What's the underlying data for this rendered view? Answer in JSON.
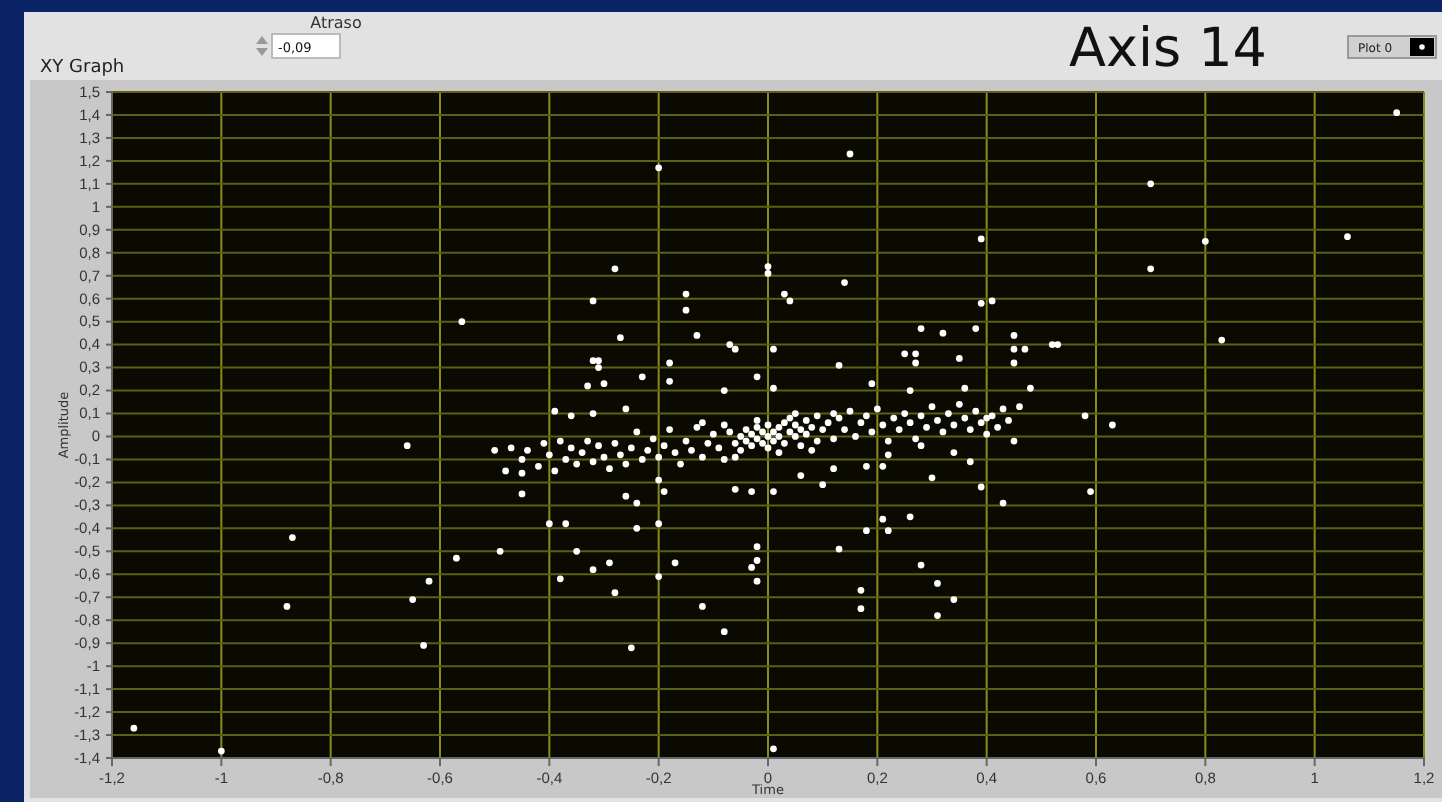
{
  "chart_data": {
    "type": "scatter",
    "title": "XY Graph",
    "xlabel": "Time",
    "ylabel": "Amplitude",
    "annotations": [
      "Atraso",
      "-0,09",
      "Axis 14"
    ],
    "xlim": [
      -1.2,
      1.2
    ],
    "xticks": [
      {
        "value": -1.2,
        "label": "-1,2"
      },
      -1,
      {
        "value": -0.8,
        "label": "-0,8"
      },
      {
        "value": -0.6,
        "label": "-0,6"
      },
      {
        "value": -0.4,
        "label": "-0,4"
      },
      {
        "value": -0.2,
        "label": "-0,2"
      },
      0,
      {
        "value": 0.2,
        "label": "0,2"
      },
      {
        "value": 0.4,
        "label": "0,4"
      },
      {
        "value": 0.6,
        "label": "0,6"
      },
      {
        "value": 0.8,
        "label": "0,8"
      },
      1,
      {
        "value": 1.2,
        "label": "1,2"
      }
    ],
    "ylim": [
      -1.4,
      1.5
    ],
    "yticks": [
      {
        "value": -1.4,
        "label": "-1,4"
      },
      {
        "value": -1.3,
        "label": "-1,3"
      },
      {
        "value": -1.2,
        "label": "-1,2"
      },
      {
        "value": -1.1,
        "label": "-1,1"
      },
      -1,
      {
        "value": -0.9,
        "label": "-0,9"
      },
      {
        "value": -0.8,
        "label": "-0,8"
      },
      {
        "value": -0.7,
        "label": "-0,7"
      },
      {
        "value": -0.6,
        "label": "-0,6"
      },
      {
        "value": -0.5,
        "label": "-0,5"
      },
      {
        "value": -0.4,
        "label": "-0,4"
      },
      {
        "value": -0.3,
        "label": "-0,3"
      },
      {
        "value": -0.2,
        "label": "-0,2"
      },
      {
        "value": -0.1,
        "label": "-0,1"
      },
      0,
      {
        "value": 0.1,
        "label": "0,1"
      },
      {
        "value": 0.2,
        "label": "0,2"
      },
      {
        "value": 0.3,
        "label": "0,3"
      },
      {
        "value": 0.4,
        "label": "0,4"
      },
      {
        "value": 0.5,
        "label": "0,5"
      },
      {
        "value": 0.6,
        "label": "0,6"
      },
      {
        "value": 0.7,
        "label": "0,7"
      },
      {
        "value": 0.8,
        "label": "0,8"
      },
      {
        "value": 0.9,
        "label": "0,9"
      },
      1,
      {
        "value": 1.1,
        "label": "1,1"
      },
      {
        "value": 1.2,
        "label": "1,2"
      },
      {
        "value": 1.3,
        "label": "1,3"
      },
      {
        "value": 1.4,
        "label": "1,4"
      },
      {
        "value": 1.5,
        "label": "1,5"
      }
    ],
    "grid": true,
    "legend": "top right",
    "marker": "circle",
    "series": [
      {
        "name": "Plot 0",
        "color": "#ffffff",
        "x": [
          -0.2,
          -0.28,
          -0.32,
          -0.56,
          -0.27,
          -0.15,
          -0.15,
          -0.13,
          -0.32,
          -0.31,
          -0.31,
          -0.18,
          -0.18,
          -0.23,
          -0.33,
          -0.3,
          -0.26,
          -0.39,
          -0.36,
          -0.32,
          -0.66,
          -0.5,
          -1.16,
          -1.0,
          -0.87,
          -0.88,
          -0.57,
          -0.62,
          -0.65,
          -0.63,
          -0.49,
          -0.45,
          -0.4,
          -0.37,
          -0.35,
          -0.38,
          -0.32,
          -0.29,
          -0.28,
          -0.26,
          -0.24,
          -0.24,
          -0.2,
          -0.2,
          -0.17,
          -0.25,
          -0.12,
          -0.2,
          -0.19,
          -0.48,
          -0.45,
          -0.08,
          0.01,
          -0.02,
          -0.02,
          -0.03,
          -0.02,
          0.13,
          0.18,
          0.21,
          0.22,
          0.26,
          0.17,
          0.17,
          0.28,
          0.31,
          0.34,
          0.31,
          0.59,
          0.39,
          0.43,
          0.37,
          0.34,
          0.3,
          0.1,
          -0.06,
          -0.03,
          0.01,
          0.21,
          0.18,
          0.06,
          0.12,
          0.22,
          0.28,
          1.15,
          0.15,
          0.7,
          0.39,
          0.8,
          1.06,
          0.7,
          0.0,
          0.0,
          0.14,
          0.03,
          0.04,
          0.39,
          0.41,
          0.83,
          0.28,
          0.32,
          0.38,
          0.45,
          0.45,
          0.47,
          0.52,
          0.53,
          0.45,
          -0.07,
          -0.06,
          0.01,
          0.25,
          0.27,
          0.27,
          0.35,
          0.13,
          -0.02,
          0.19,
          0.48,
          0.46,
          0.58,
          0.63,
          -0.08,
          0.01,
          0.4,
          0.26,
          0.36,
          -0.47,
          -0.45,
          -0.44,
          -0.42,
          -0.41,
          -0.4,
          -0.39,
          -0.38,
          -0.37,
          -0.36,
          -0.35,
          -0.34,
          -0.33,
          -0.32,
          -0.31,
          -0.3,
          -0.29,
          -0.28,
          -0.27,
          -0.26,
          -0.25,
          -0.24,
          -0.23,
          -0.22,
          -0.21,
          -0.2,
          -0.19,
          -0.18,
          -0.17,
          -0.16,
          -0.15,
          -0.14,
          -0.13,
          -0.12,
          -0.11,
          -0.1,
          -0.09,
          -0.08,
          -0.07,
          -0.06,
          -0.05,
          -0.05,
          -0.04,
          -0.04,
          -0.03,
          -0.03,
          -0.02,
          -0.02,
          -0.01,
          -0.01,
          0.0,
          0.0,
          0.0,
          0.01,
          0.01,
          0.02,
          0.02,
          0.03,
          0.03,
          0.04,
          0.04,
          0.05,
          0.05,
          0.06,
          0.06,
          0.07,
          0.07,
          0.08,
          0.09,
          0.09,
          0.1,
          0.11,
          0.12,
          0.13,
          0.14,
          0.15,
          0.16,
          0.17,
          0.18,
          0.19,
          0.2,
          0.21,
          0.22,
          0.23,
          0.24,
          0.25,
          0.26,
          0.27,
          0.28,
          0.29,
          0.3,
          0.31,
          0.32,
          0.33,
          0.34,
          0.35,
          0.36,
          0.37,
          0.38,
          0.39,
          0.4,
          0.41,
          0.42,
          0.43,
          0.44,
          0.45,
          -0.02,
          0.02,
          0.08,
          -0.08,
          0.12,
          -0.12,
          0.05,
          -0.06
        ],
        "values": [
          1.17,
          0.73,
          0.59,
          0.5,
          0.43,
          0.62,
          0.55,
          0.44,
          0.33,
          0.33,
          0.3,
          0.32,
          0.24,
          0.26,
          0.22,
          0.23,
          0.12,
          0.11,
          0.09,
          0.1,
          -0.04,
          -0.06,
          -1.27,
          -1.37,
          -0.44,
          -0.74,
          -0.53,
          -0.63,
          -0.71,
          -0.91,
          -0.5,
          -0.25,
          -0.38,
          -0.38,
          -0.5,
          -0.62,
          -0.58,
          -0.55,
          -0.68,
          -0.26,
          -0.29,
          -0.4,
          -0.38,
          -0.61,
          -0.55,
          -0.92,
          -0.74,
          -0.19,
          -0.24,
          -0.15,
          -0.16,
          -0.85,
          -1.36,
          -0.48,
          -0.54,
          -0.57,
          -0.63,
          -0.49,
          -0.41,
          -0.36,
          -0.41,
          -0.35,
          -0.67,
          -0.75,
          -0.56,
          -0.64,
          -0.71,
          -0.78,
          -0.24,
          -0.22,
          -0.29,
          -0.11,
          -0.07,
          -0.18,
          -0.21,
          -0.23,
          -0.24,
          -0.24,
          -0.13,
          -0.13,
          -0.17,
          -0.14,
          -0.08,
          -0.04,
          1.41,
          1.23,
          1.1,
          0.86,
          0.85,
          0.87,
          0.73,
          0.74,
          0.71,
          0.67,
          0.62,
          0.59,
          0.58,
          0.59,
          0.42,
          0.47,
          0.45,
          0.47,
          0.44,
          0.38,
          0.38,
          0.4,
          0.4,
          0.32,
          0.4,
          0.38,
          0.38,
          0.36,
          0.36,
          0.32,
          0.34,
          0.31,
          0.26,
          0.23,
          0.21,
          0.13,
          0.09,
          0.05,
          0.2,
          0.21,
          0.08,
          0.2,
          0.21,
          -0.05,
          -0.1,
          -0.06,
          -0.13,
          -0.03,
          -0.08,
          -0.15,
          -0.02,
          -0.1,
          -0.05,
          -0.12,
          -0.07,
          -0.02,
          -0.11,
          -0.04,
          -0.09,
          -0.14,
          -0.03,
          -0.08,
          -0.12,
          -0.05,
          0.02,
          -0.1,
          -0.06,
          -0.01,
          -0.09,
          -0.04,
          0.03,
          -0.07,
          -0.12,
          -0.02,
          -0.06,
          0.04,
          -0.09,
          -0.03,
          0.01,
          -0.05,
          -0.1,
          0.02,
          -0.03,
          0.0,
          -0.06,
          0.03,
          -0.02,
          -0.04,
          0.01,
          0.04,
          -0.01,
          0.02,
          -0.03,
          0.0,
          0.05,
          -0.05,
          0.02,
          -0.02,
          0.04,
          0.0,
          0.06,
          -0.03,
          0.02,
          0.08,
          0.0,
          0.05,
          0.03,
          -0.04,
          0.07,
          0.01,
          0.04,
          -0.02,
          0.09,
          0.03,
          0.06,
          -0.01,
          0.08,
          0.03,
          0.11,
          0.0,
          0.06,
          0.09,
          0.02,
          0.12,
          0.05,
          -0.02,
          0.08,
          0.03,
          0.1,
          0.06,
          -0.01,
          0.09,
          0.04,
          0.13,
          0.07,
          0.02,
          0.1,
          0.05,
          0.14,
          0.08,
          0.03,
          0.11,
          0.06,
          0.01,
          0.09,
          0.04,
          0.12,
          0.07,
          -0.02,
          0.07,
          -0.07,
          -0.06,
          0.05,
          0.1,
          0.06,
          0.1,
          -0.09
        ]
      }
    ]
  }
}
